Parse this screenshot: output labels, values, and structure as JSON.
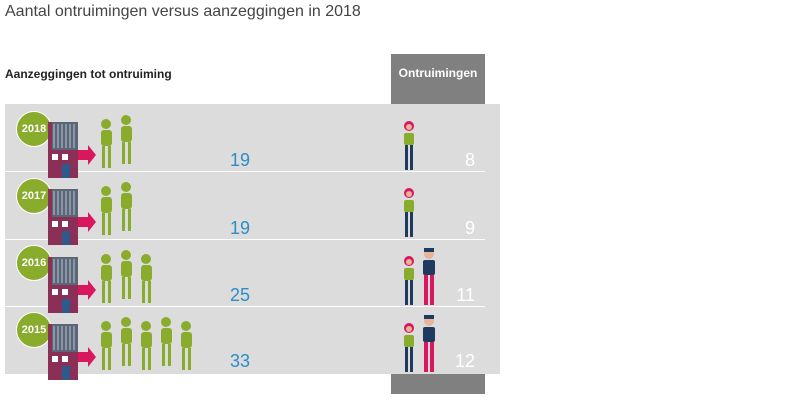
{
  "title": "Aantal ontruimingen versus aanzeggingen in 2018",
  "columns": {
    "left": "Aanzeggingen tot ontruiming",
    "right": "Ontruimingen"
  },
  "colors": {
    "accent_green": "#8aac2c",
    "value_blue": "#2e8cc8",
    "evictions_panel": "#808080",
    "band_bg": "#dcdcdc",
    "house": "#8a2f55",
    "arrow": "#d8175f"
  },
  "chart_data": {
    "type": "bar",
    "title": "Aantal ontruimingen versus aanzeggingen in 2018",
    "categories": [
      "2018",
      "2017",
      "2016",
      "2015"
    ],
    "series": [
      {
        "name": "Aanzeggingen tot ontruiming",
        "values": [
          19,
          19,
          25,
          33
        ]
      },
      {
        "name": "Ontruimingen",
        "values": [
          8,
          9,
          11,
          12
        ]
      }
    ],
    "value_labels": {
      "aanzeggingen": [
        "19",
        "19",
        "25",
        "33"
      ],
      "ontruimingen": [
        "8",
        "9",
        "11",
        "12"
      ]
    },
    "pictogram": {
      "green_figures": [
        2,
        2,
        3,
        5
      ],
      "evictee_figures": [
        1,
        1,
        2,
        2
      ]
    }
  }
}
